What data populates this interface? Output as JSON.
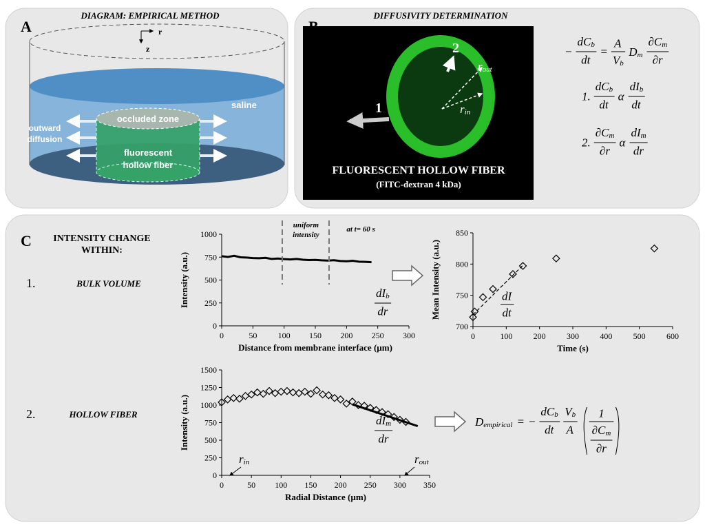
{
  "panel_a": {
    "letter": "A",
    "title": "DIAGRAM: EMPIRICAL METHOD",
    "axis_r": "r",
    "axis_z": "z",
    "saline": "saline",
    "occluded": "occluded zone",
    "outward": [
      "outward",
      "diffusion"
    ],
    "fiber": [
      "fluorescent",
      "hollow fiber"
    ]
  },
  "panel_b": {
    "letter": "B",
    "title": "DIFFUSIVITY DETERMINATION",
    "label_1": "1",
    "label_2": "2",
    "r_out": {
      "t": "r",
      "s": "out"
    },
    "r_in": {
      "t": "r",
      "s": "in"
    },
    "caption": "FLUORESCENT HOLLOW  FIBER",
    "subcaption": "(FITC-dextran 4 kDa)",
    "equations": [
      [
        "−",
        {
          "frac": [
            {
              "t": "dC",
              "s": "b"
            },
            "dt"
          ]
        },
        "=",
        {
          "frac": [
            "A",
            {
              "t": "V",
              "s": "b"
            }
          ]
        },
        {
          "t": "D",
          "s": "m"
        },
        {
          "frac": [
            {
              "t": "∂C",
              "s": "m"
            },
            "∂r"
          ]
        }
      ],
      [
        "1.",
        {
          "frac": [
            {
              "t": "dC",
              "s": "b"
            },
            "dt"
          ]
        },
        "α",
        {
          "frac": [
            {
              "t": "dI",
              "s": "b"
            },
            "dt"
          ]
        }
      ],
      [
        "2.",
        {
          "frac": [
            {
              "t": "∂C",
              "s": "m"
            },
            "∂r"
          ]
        },
        "α",
        {
          "frac": [
            {
              "t": "dI",
              "s": "m"
            },
            "dr"
          ]
        }
      ]
    ]
  },
  "panel_c": {
    "letter": "C",
    "heading": [
      "INTENSITY CHANGE",
      "WITHIN:"
    ],
    "items": [
      {
        "num": "1.",
        "label": "BULK VOLUME"
      },
      {
        "num": "2.",
        "label": "HOLLOW FIBER"
      }
    ],
    "equation": [
      {
        "t": "D",
        "s": "empirical"
      },
      "=",
      "−",
      {
        "frac": [
          {
            "t": "dC",
            "s": "b"
          },
          "dt"
        ]
      },
      {
        "frac": [
          {
            "t": "V",
            "s": "b"
          },
          "A"
        ]
      },
      {
        "paren": {
          "frac": [
            "1",
            {
              "frac": [
                {
                  "t": "∂C",
                  "s": "m"
                },
                "∂r"
              ]
            }
          ]
        }
      }
    ]
  },
  "chart_data": [
    {
      "type": "line",
      "x_label": "Distance from membrane interface (µm)",
      "y_label": "Intensity (a.u.)",
      "x": [
        0,
        10,
        20,
        30,
        40,
        50,
        60,
        70,
        80,
        90,
        100,
        110,
        120,
        130,
        140,
        150,
        160,
        170,
        180,
        190,
        200,
        210,
        220,
        230,
        240
      ],
      "values": [
        760,
        752,
        765,
        748,
        745,
        740,
        738,
        742,
        730,
        735,
        728,
        725,
        730,
        722,
        718,
        720,
        715,
        712,
        716,
        708,
        705,
        710,
        700,
        698,
        695
      ],
      "color": "#000000",
      "xlim": [
        0,
        300
      ],
      "xticks": [
        0,
        50,
        100,
        150,
        200,
        250,
        300
      ],
      "ylim": [
        0,
        1000
      ],
      "yticks": [
        0,
        250,
        500,
        750,
        1000
      ],
      "annotations": {
        "uniform": [
          "uniform",
          "intensity"
        ],
        "time": "at t= 60 s",
        "region": [
          97,
          172
        ],
        "slope": {
          "frac": [
            {
              "t": "dI",
              "s": "b"
            },
            "dr"
          ]
        }
      }
    },
    {
      "type": "scatter",
      "marker": "diamond",
      "x_label": "Time (s)",
      "y_label": "Mean Intensity (a.u.)",
      "x": [
        0,
        5,
        30,
        60,
        120,
        150,
        250,
        545
      ],
      "values": [
        715,
        724,
        747,
        760,
        784,
        797,
        809,
        825
      ],
      "color": "#000000",
      "xlim": [
        0,
        600
      ],
      "xticks": [
        0,
        100,
        200,
        300,
        400,
        500,
        600
      ],
      "ylim": [
        700,
        850
      ],
      "yticks": [
        700,
        750,
        800,
        850
      ],
      "trendline": {
        "x": [
          0,
          150
        ],
        "y": [
          719,
          798
        ]
      },
      "annotations": {
        "slope": {
          "frac": [
            "dI",
            "dt"
          ]
        }
      }
    },
    {
      "type": "scatter",
      "marker": "diamond",
      "x_label": "Radial Distance (µm)",
      "y_label": "Intensity (a.u.)",
      "x": [
        0,
        10,
        20,
        30,
        40,
        50,
        60,
        70,
        80,
        90,
        100,
        110,
        120,
        130,
        140,
        150,
        160,
        170,
        180,
        190,
        200,
        210,
        220,
        230,
        240,
        250,
        260,
        270,
        280,
        290,
        300,
        310
      ],
      "values": [
        1040,
        1080,
        1100,
        1090,
        1130,
        1150,
        1180,
        1160,
        1200,
        1170,
        1190,
        1200,
        1180,
        1170,
        1190,
        1160,
        1210,
        1150,
        1140,
        1100,
        1080,
        1020,
        1050,
        1000,
        990,
        960,
        930,
        900,
        870,
        830,
        790,
        760
      ],
      "color": "#000000",
      "xlim": [
        0,
        350
      ],
      "xticks": [
        0,
        50,
        100,
        150,
        200,
        250,
        300,
        350
      ],
      "ylim": [
        0,
        1500
      ],
      "yticks": [
        0,
        250,
        500,
        750,
        1000,
        1250,
        1500
      ],
      "trendline": {
        "x": [
          220,
          330
        ],
        "y": [
          1010,
          700
        ]
      },
      "annotations": {
        "slope": {
          "frac": [
            {
              "t": "dI",
              "s": "m"
            },
            "dr"
          ]
        },
        "r_in": {
          "t": "r",
          "s": "in"
        },
        "r_out": {
          "t": "r",
          "s": "out"
        }
      }
    }
  ]
}
